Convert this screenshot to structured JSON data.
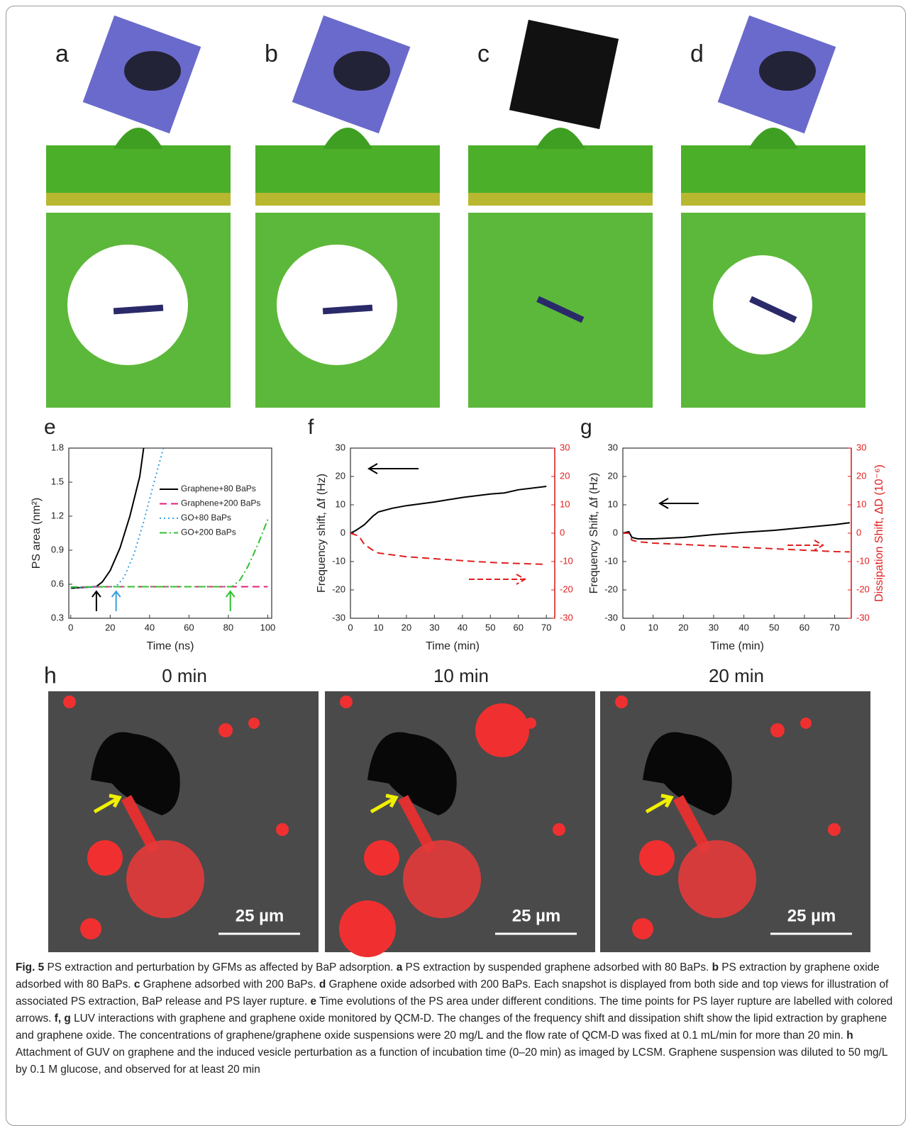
{
  "snapshots": {
    "labels": [
      "a",
      "b",
      "c",
      "d"
    ]
  },
  "chart_data": [
    {
      "type": "line",
      "panel": "e",
      "xlabel": "Time (ns)",
      "ylabel": "PS area (nm²)",
      "xlim": [
        -1,
        102
      ],
      "xticks": [
        0,
        20,
        40,
        60,
        80,
        100
      ],
      "ylim": [
        0.3,
        1.8
      ],
      "yticks": [
        0.3,
        0.6,
        0.9,
        1.2,
        1.5,
        1.8
      ],
      "legend": "right",
      "series": [
        {
          "name": "Graphene+80 BaPs",
          "color": "#000000",
          "dash": "solid",
          "x": [
            0,
            5,
            10,
            13,
            16,
            20,
            25,
            30,
            35,
            37
          ],
          "values": [
            0.565,
            0.57,
            0.575,
            0.58,
            0.62,
            0.72,
            0.92,
            1.2,
            1.55,
            1.8
          ]
        },
        {
          "name": "Graphene+200 BaPs",
          "color": "#e0207a",
          "dash": "dashed",
          "x": [
            0,
            20,
            40,
            60,
            80,
            100
          ],
          "values": [
            0.575,
            0.578,
            0.578,
            0.578,
            0.578,
            0.578
          ]
        },
        {
          "name": "GO+80 BaPs",
          "color": "#3aa0e0",
          "dash": "dotted",
          "x": [
            0,
            10,
            20,
            23,
            27,
            32,
            37,
            42,
            47
          ],
          "values": [
            0.57,
            0.575,
            0.578,
            0.58,
            0.66,
            0.86,
            1.15,
            1.48,
            1.8
          ]
        },
        {
          "name": "GO+200 BaPs",
          "color": "#30c030",
          "dash": "dashdot",
          "x": [
            0,
            20,
            40,
            60,
            80,
            82,
            86,
            90,
            95,
            100
          ],
          "values": [
            0.575,
            0.578,
            0.578,
            0.578,
            0.578,
            0.58,
            0.64,
            0.76,
            0.95,
            1.17
          ]
        }
      ],
      "rupture_arrows": [
        {
          "x": 13,
          "color": "#000000"
        },
        {
          "x": 23,
          "color": "#3aa0e0"
        },
        {
          "x": 81,
          "color": "#30c030"
        }
      ]
    },
    {
      "type": "line",
      "panel": "f",
      "xlabel": "Time (min)",
      "ylabel": "Frequency shift, Δf (Hz)",
      "xlim": [
        0,
        73
      ],
      "xticks": [
        0,
        10,
        20,
        30,
        40,
        50,
        60,
        70
      ],
      "ylim": [
        -30,
        30
      ],
      "yticks": [
        -30,
        -20,
        -10,
        0,
        10,
        20,
        30
      ],
      "y2lim": [
        -30,
        30
      ],
      "y2ticks": [
        -30,
        -20,
        -10,
        0,
        10,
        20,
        30
      ],
      "y2color": "#e02020",
      "series": [
        {
          "color": "#000000",
          "dash": "solid",
          "x": [
            0,
            2,
            5,
            8,
            10,
            15,
            20,
            30,
            40,
            50,
            55,
            60,
            70
          ],
          "values": [
            0,
            1,
            3,
            6,
            7.5,
            8.8,
            9.7,
            11,
            12.6,
            13.8,
            14.2,
            15.3,
            16.5
          ]
        },
        {
          "color": "#e02020",
          "dash": "dashed",
          "axis": "y2",
          "x": [
            0,
            3,
            5,
            8,
            10,
            20,
            30,
            40,
            50,
            60,
            70
          ],
          "values": [
            0,
            -1,
            -4,
            -6,
            -7,
            -8.3,
            -9,
            -9.7,
            -10.3,
            -10.7,
            -11
          ]
        }
      ]
    },
    {
      "type": "line",
      "panel": "g",
      "xlabel": "Time (min)",
      "ylabel": "Frequency Shift, Δf (Hz)",
      "y2label": "Dissipation Shift, ΔD (10⁻⁶)",
      "xlim": [
        0,
        75.5
      ],
      "xticks": [
        0,
        10,
        20,
        30,
        40,
        50,
        60,
        70
      ],
      "ylim": [
        -30,
        30
      ],
      "yticks": [
        -30,
        -20,
        -10,
        0,
        10,
        20,
        30
      ],
      "y2lim": [
        -30,
        30
      ],
      "y2ticks": [
        -30,
        -20,
        -10,
        0,
        10,
        20,
        30
      ],
      "y2color": "#e02020",
      "series": [
        {
          "color": "#000000",
          "dash": "solid",
          "x": [
            0,
            1,
            2,
            3,
            5,
            10,
            20,
            30,
            40,
            50,
            60,
            70,
            75
          ],
          "values": [
            0,
            0.3,
            0.5,
            -1.5,
            -2,
            -2,
            -1.5,
            -0.5,
            0.3,
            1,
            2,
            3,
            3.7
          ]
        },
        {
          "color": "#e02020",
          "dash": "dashed",
          "axis": "y2",
          "x": [
            0,
            2,
            3,
            5,
            10,
            20,
            30,
            40,
            50,
            60,
            70,
            75
          ],
          "values": [
            0,
            0,
            -2.5,
            -3,
            -3.5,
            -4,
            -4.5,
            -5,
            -5.5,
            -6,
            -6.5,
            -6.6
          ]
        }
      ]
    }
  ],
  "microscopy": {
    "label": "h",
    "panels": [
      {
        "time": "0 min",
        "scale_bar": "25 µm"
      },
      {
        "time": "10 min",
        "scale_bar": "25 µm"
      },
      {
        "time": "20 min",
        "scale_bar": "25 µm"
      }
    ]
  },
  "caption": {
    "label": "Fig. 5",
    "text": " PS extraction and perturbation by GFMs as affected by BaP adsorption. ",
    "parts": [
      {
        "key": "a",
        "text": " PS extraction by suspended graphene adsorbed with 80 BaPs. "
      },
      {
        "key": "b",
        "text": " PS extraction by graphene oxide adsorbed with 80 BaPs. "
      },
      {
        "key": "c",
        "text": " Graphene adsorbed with 200 BaPs. "
      },
      {
        "key": "d",
        "text": " Graphene oxide adsorbed with 200 BaPs. Each snapshot is displayed from both side and top views for illustration of associated PS extraction, BaP release and PS layer rupture. "
      },
      {
        "key": "e",
        "text": " Time evolutions of the PS area under different conditions. The time points for PS layer rupture are labelled with colored arrows. "
      },
      {
        "key": "f, g",
        "text": " LUV interactions with graphene and graphene oxide monitored by QCM-D. The changes of the frequency shift and dissipation shift show the lipid extraction by graphene and graphene oxide. The concentrations of graphene/graphene oxide suspensions were 20 mg/L and the flow rate of QCM-D was fixed at 0.1 mL/min for more than 20 min. "
      },
      {
        "key": "h",
        "text": " Attachment of GUV on graphene and the induced vesicle perturbation as a function of incubation time (0–20 min) as imaged by LCSM. Graphene suspension was diluted to 50 mg/L by 0.1 M glucose, and observed for at least 20 min"
      }
    ]
  }
}
